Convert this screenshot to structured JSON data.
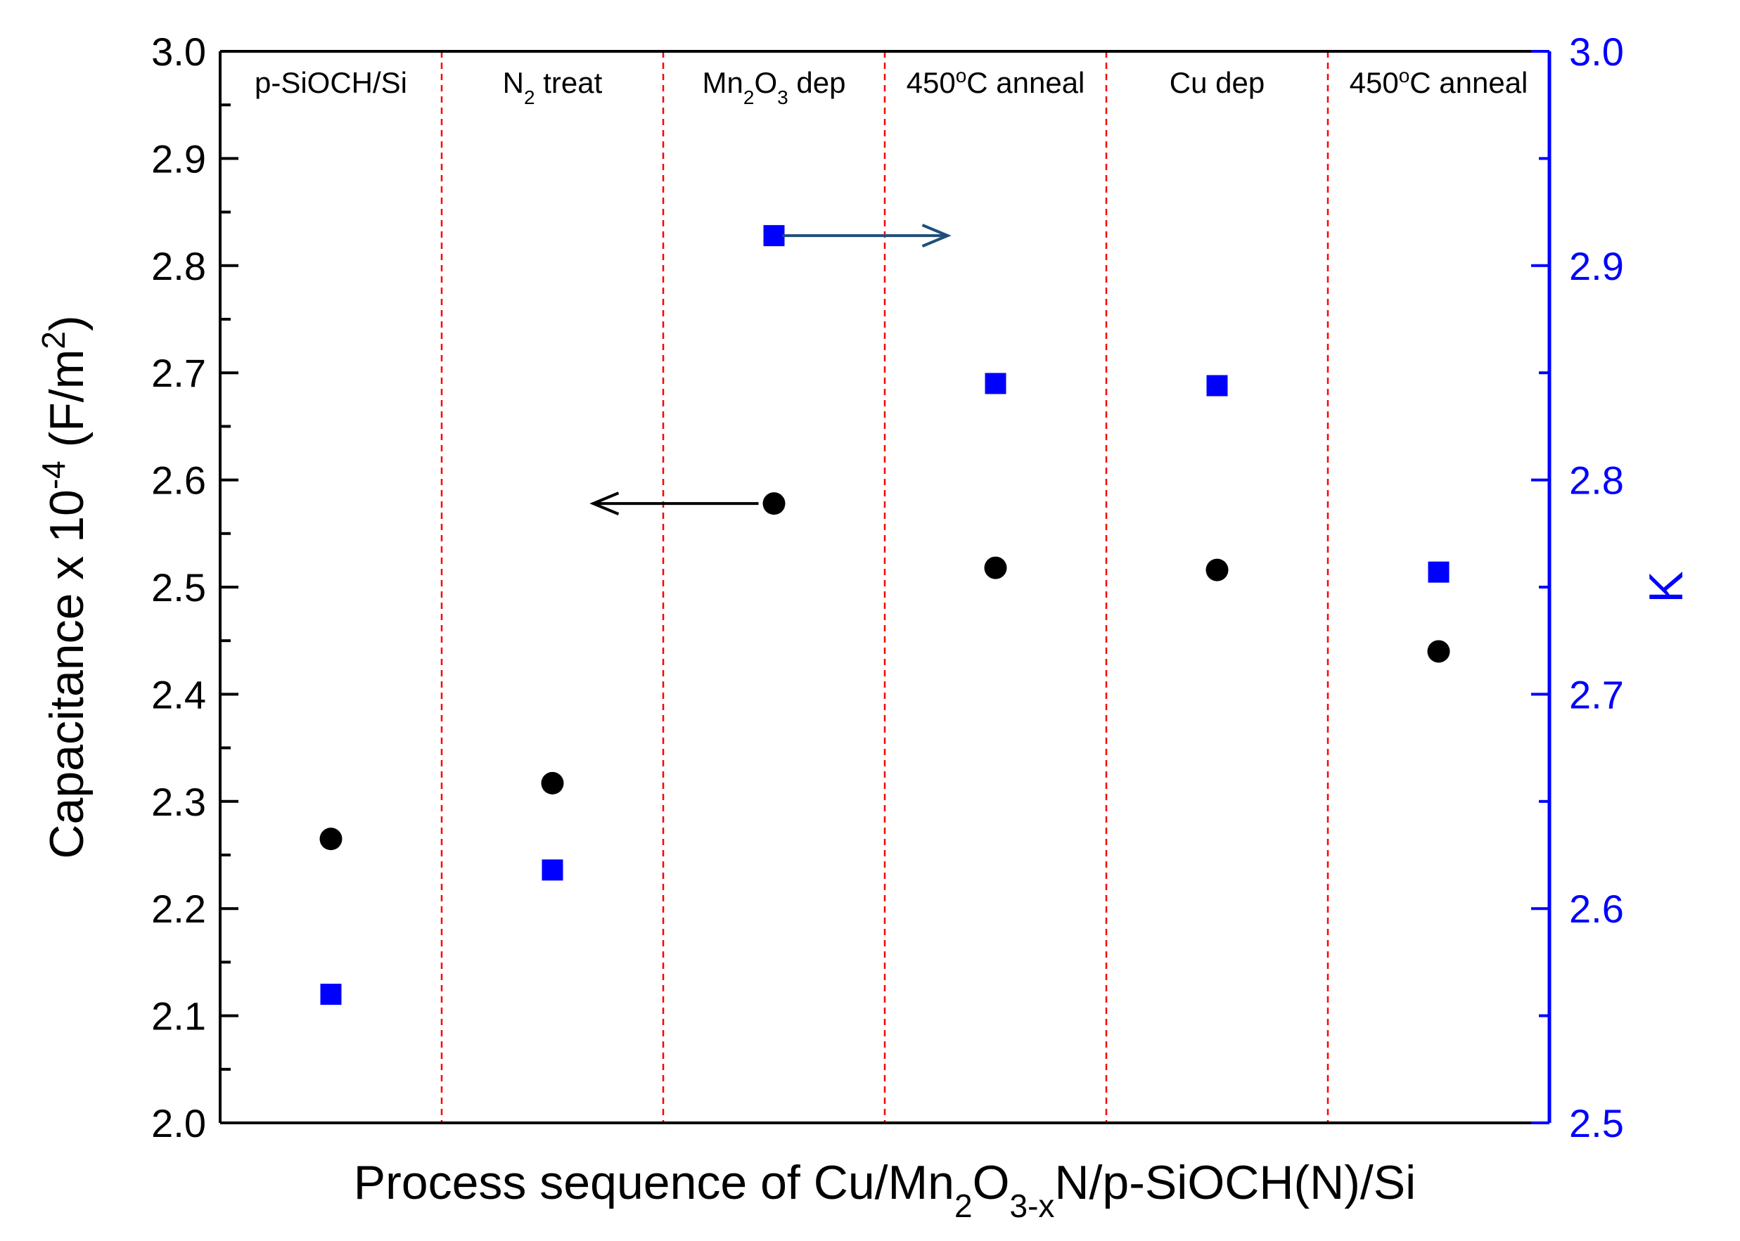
{
  "chart_data": {
    "type": "scatter",
    "title": "",
    "xlabel": {
      "pre": "Process sequence of Cu/Mn",
      "sub1": "2",
      "mid": "O",
      "sub2": "3-x",
      "post": "N/p-SiOCH(N)/Si"
    },
    "ylabel": {
      "pre": "Capacitance x 10",
      "sup1": "-4",
      "mid": " (F/m",
      "sup2": "2",
      "post": ")"
    },
    "y2label": "K",
    "ylim": [
      2.0,
      3.0
    ],
    "y2lim": [
      2.5,
      3.0
    ],
    "yticks": [
      "2.0",
      "2.1",
      "2.2",
      "2.3",
      "2.4",
      "2.5",
      "2.6",
      "2.7",
      "2.8",
      "2.9",
      "3.0"
    ],
    "y2ticks": [
      "2.5",
      "2.6",
      "2.7",
      "2.8",
      "2.9",
      "3.0"
    ],
    "grid": false,
    "stages": [
      {
        "pre": "p-SiOCH/Si"
      },
      {
        "pre": "N",
        "sub": "2",
        "post": " treat"
      },
      {
        "pre": "Mn",
        "sub": "2",
        "mid": "O",
        "sub2": "3",
        "post": " dep"
      },
      {
        "pre": "450",
        "sup": "o",
        "post": "C anneal"
      },
      {
        "pre": "Cu dep"
      },
      {
        "pre": "450",
        "sup": "o",
        "post": "C anneal"
      }
    ],
    "series": [
      {
        "marker": "circle",
        "axis": "left",
        "color": "#000000",
        "values": [
          2.265,
          2.317,
          2.578,
          2.518,
          2.516,
          2.44
        ]
      },
      {
        "marker": "square",
        "axis": "right",
        "color": "#0000ff",
        "values": [
          2.56,
          2.618,
          2.914,
          2.845,
          2.844,
          2.757
        ]
      }
    ],
    "annotations": [
      {
        "type": "arrow",
        "points_to": "left axis",
        "series_index": 0,
        "stage_index": 2,
        "color": "#000000"
      },
      {
        "type": "arrow",
        "points_to": "right axis",
        "series_index": 1,
        "stage_index": 2,
        "color": "#1f4e79"
      }
    ],
    "colors": {
      "right_axis": "#0000ff",
      "separator": "#ff0000",
      "left_axis": "#000000"
    }
  }
}
